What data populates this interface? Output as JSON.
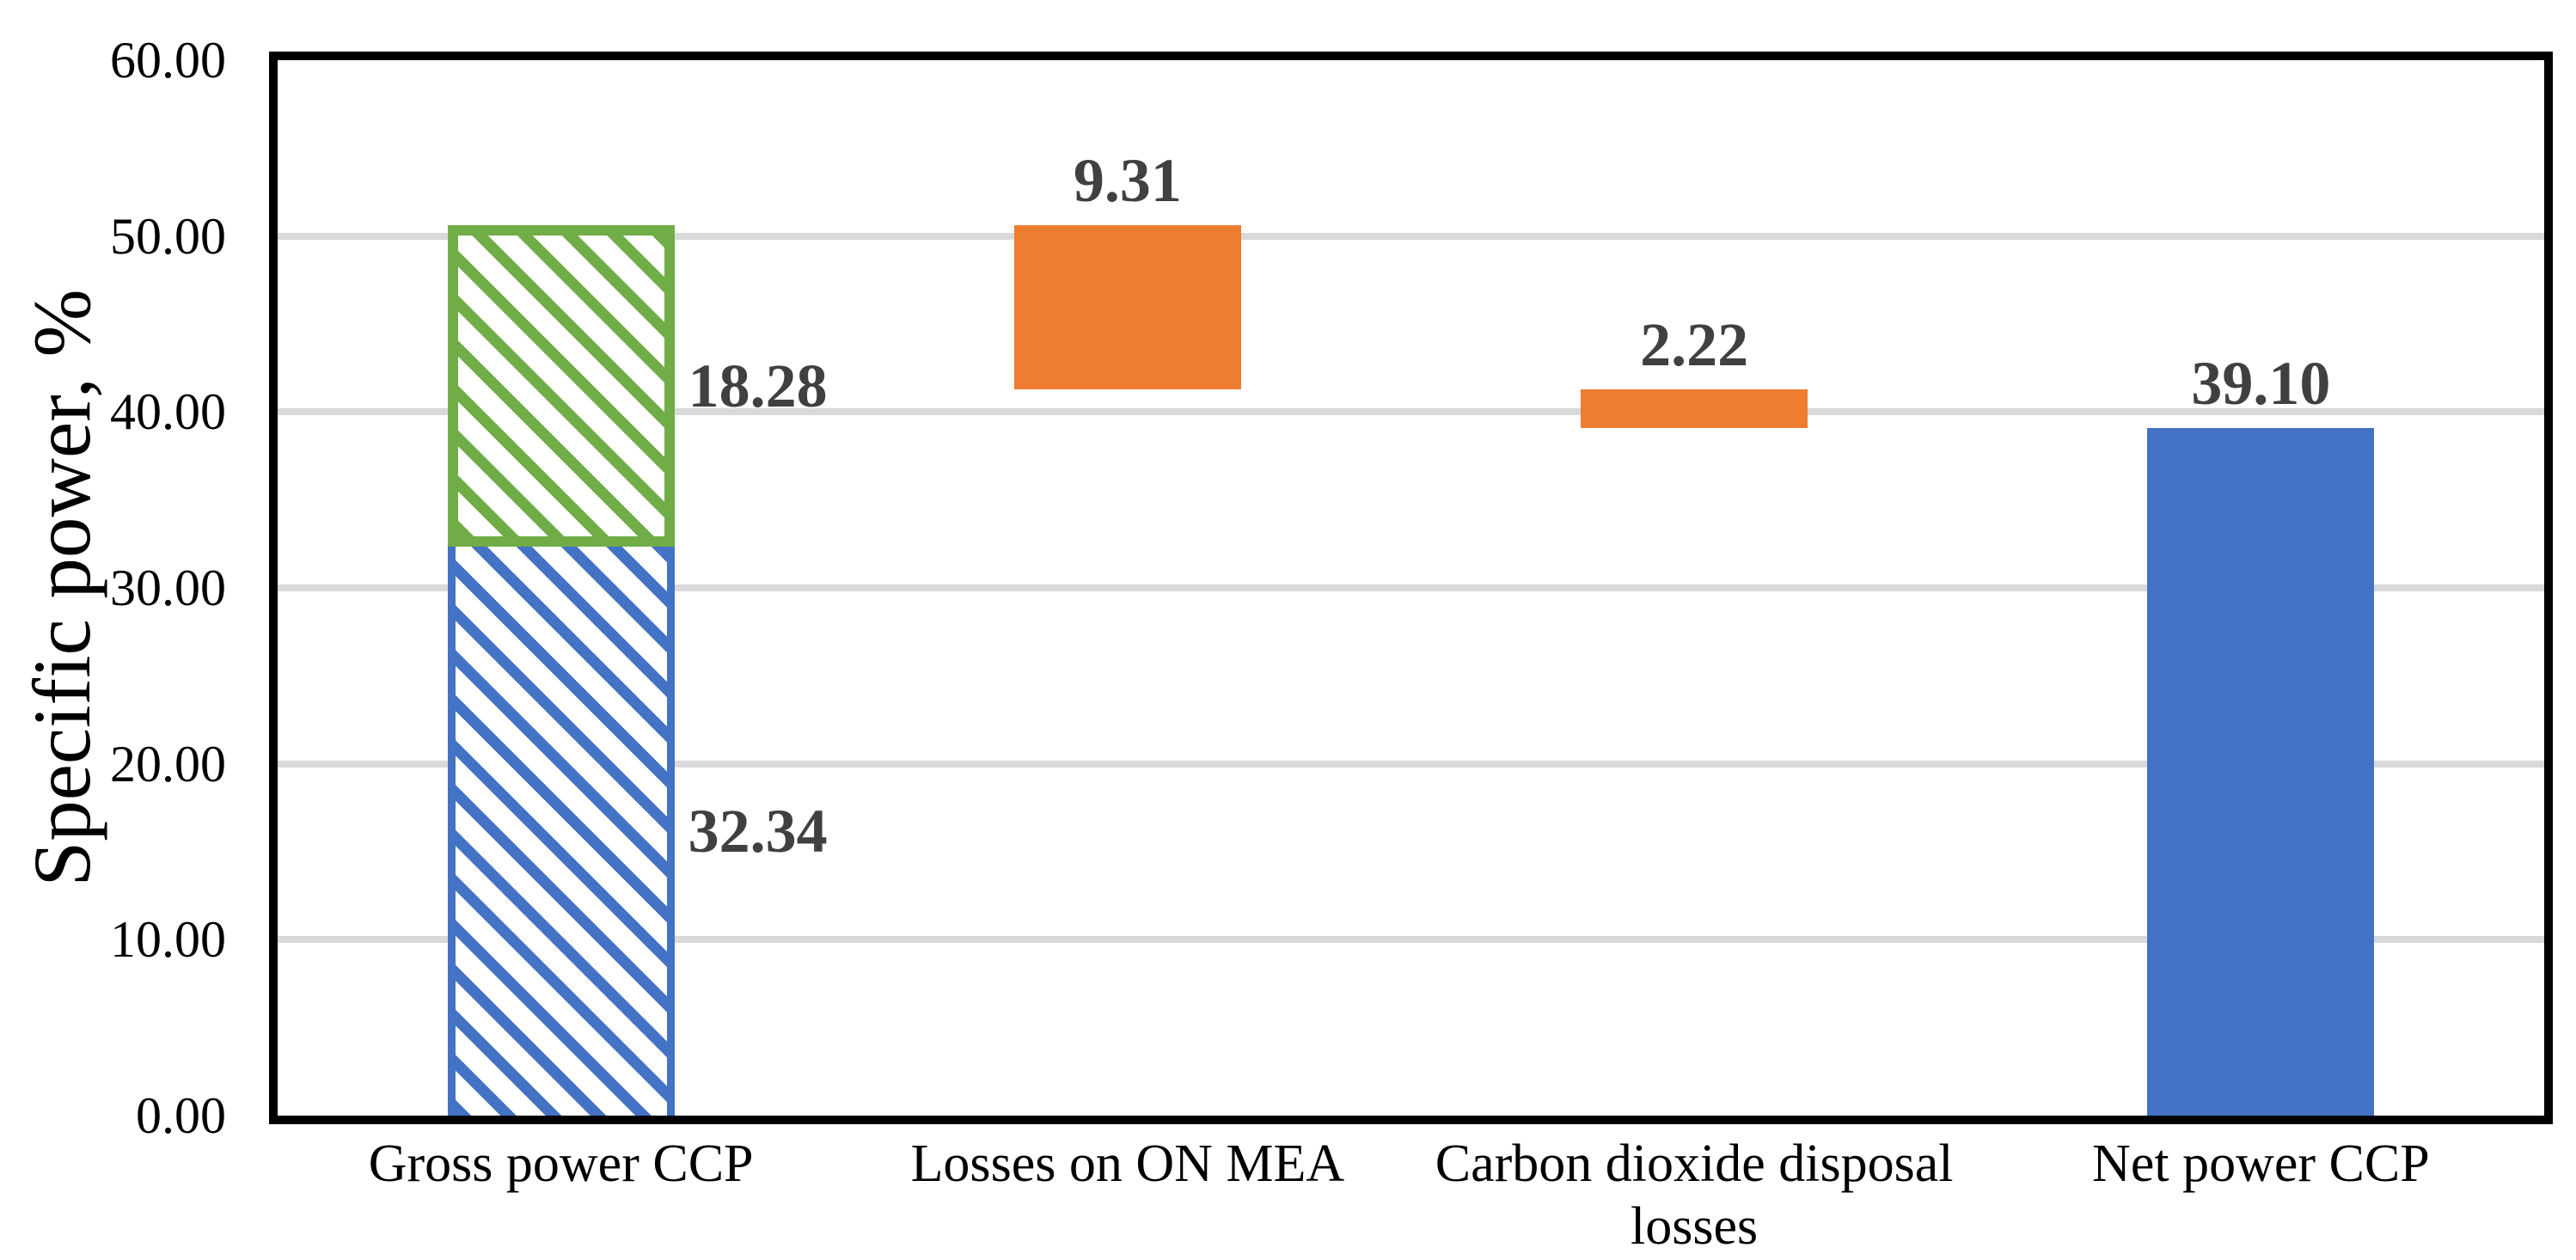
{
  "chart_data": {
    "type": "bar",
    "subtype": "waterfall-stacked-bar",
    "title": "",
    "ylabel": "Specific power, %",
    "xlabel": "",
    "ylim": [
      0,
      60
    ],
    "ytick_step": 10,
    "ytick_labels": [
      "0.00",
      "10.00",
      "20.00",
      "30.00",
      "40.00",
      "50.00",
      "60.00"
    ],
    "grid": true,
    "legend": "none",
    "categories": [
      "Gross power CCP",
      "Losses on ON MEA",
      "Carbon dioxide disposal losses",
      "Net power CCP"
    ],
    "bars": [
      {
        "category": "Gross power CCP",
        "segments": [
          {
            "value": 32.34,
            "from": 0,
            "to": 32.34,
            "label": "32.34",
            "style": "blue-hatch",
            "label_position": "right"
          },
          {
            "value": 18.28,
            "from": 32.34,
            "to": 50.62,
            "label": "18.28",
            "style": "green-hatch",
            "label_position": "right"
          }
        ]
      },
      {
        "category": "Losses on ON MEA",
        "segments": [
          {
            "value": 9.31,
            "from": 41.31,
            "to": 50.62,
            "label": "9.31",
            "style": "orange-solid",
            "label_position": "above"
          }
        ]
      },
      {
        "category": "Carbon dioxide disposal losses",
        "segments": [
          {
            "value": 2.22,
            "from": 39.09,
            "to": 41.31,
            "label": "2.22",
            "style": "orange-solid",
            "label_position": "above"
          }
        ]
      },
      {
        "category": "Net power CCP",
        "segments": [
          {
            "value": 39.1,
            "from": 0,
            "to": 39.1,
            "label": "39.10",
            "style": "blue-solid",
            "label_position": "above"
          }
        ]
      }
    ],
    "colors": {
      "blue": "#4472C4",
      "green": "#70AD47",
      "orange": "#ED7D31",
      "data_label": "#404040",
      "gridline": "#D9D9D9",
      "axis": "#000000",
      "background": "#FFFFFF"
    }
  }
}
